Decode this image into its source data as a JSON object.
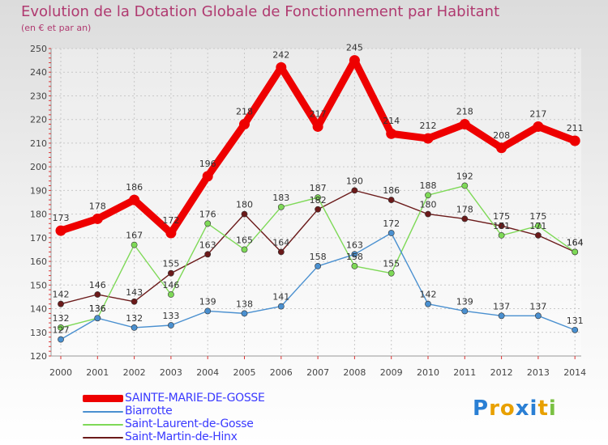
{
  "chart_data": {
    "type": "line",
    "title": "Evolution de la Dotation Globale de Fonctionnement par Habitant",
    "subtitle": "(en € et par an)",
    "xlabel": "",
    "ylabel": "",
    "ylim": [
      120,
      250
    ],
    "yticks": [
      120,
      130,
      140,
      150,
      160,
      170,
      180,
      190,
      200,
      210,
      220,
      230,
      240,
      250
    ],
    "categories": [
      "2000",
      "2001",
      "2002",
      "2003",
      "2004",
      "2005",
      "2006",
      "2007",
      "2008",
      "2009",
      "2010",
      "2011",
      "2012",
      "2013",
      "2014"
    ],
    "grid": true,
    "legend_position": "bottom-left",
    "series": [
      {
        "name": "SAINTE-MARIE-DE-GOSSE",
        "color": "#ee0000",
        "label_color": "#333333",
        "width": "thick",
        "values": [
          173,
          178,
          186,
          172,
          196,
          218,
          242,
          217,
          245,
          214,
          212,
          218,
          208,
          217,
          211
        ]
      },
      {
        "name": "Biarrotte",
        "color": "#4a90d0",
        "label_color": "#333333",
        "width": "thin",
        "values": [
          127,
          136,
          132,
          133,
          139,
          138,
          141,
          158,
          163,
          172,
          142,
          139,
          137,
          137,
          131
        ]
      },
      {
        "name": "Saint-Laurent-de-Gosse",
        "color": "#7ed957",
        "label_color": "#333333",
        "width": "thin",
        "values": [
          132,
          136,
          167,
          146,
          176,
          165,
          183,
          187,
          158,
          155,
          188,
          192,
          171,
          175,
          164
        ]
      },
      {
        "name": "Saint-Martin-de-Hinx",
        "color": "#6b1a1a",
        "label_color": "#333333",
        "width": "thin",
        "values": [
          142,
          146,
          143,
          155,
          163,
          180,
          164,
          182,
          190,
          186,
          180,
          178,
          175,
          171,
          164
        ]
      }
    ]
  },
  "legend": {
    "items": [
      {
        "label": "SAINTE-MARIE-DE-GOSSE",
        "color": "#ee0000",
        "text_color": "#3a3aff"
      },
      {
        "label": "Biarrotte",
        "color": "#4a90d0",
        "text_color": "#3a3aff"
      },
      {
        "label": "Saint-Laurent-de-Gosse",
        "color": "#7ed957",
        "text_color": "#3a3aff"
      },
      {
        "label": "Saint-Martin-de-Hinx",
        "color": "#6b1a1a",
        "text_color": "#3a3aff"
      }
    ]
  },
  "logo": {
    "text": "Proxiti",
    "letter_colors": [
      "#2a7fd4",
      "#e8a000",
      "#e8a000",
      "#2a7fd4",
      "#2a7fd4",
      "#e8a000",
      "#7ac142"
    ]
  }
}
